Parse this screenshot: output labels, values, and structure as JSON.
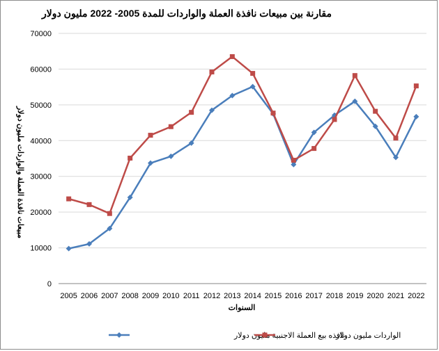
{
  "chart_data": {
    "type": "line",
    "title": "مقارنة بين مبيعات نافذة العملة والواردات للمدة 2005- 2022 مليون دولار",
    "xlabel": "السنوات",
    "ylabel": "مبيعات نافذة العملة والواردات مليون دولار",
    "categories": [
      "2005",
      "2006",
      "2007",
      "2008",
      "2009",
      "2010",
      "2011",
      "2012",
      "2013",
      "2014",
      "2015",
      "2016",
      "2017",
      "2018",
      "2019",
      "2020",
      "2021",
      "2022"
    ],
    "ylim": [
      0,
      70000
    ],
    "yticks": [
      "0",
      "10000",
      "20000",
      "30000",
      "40000",
      "50000",
      "60000",
      "70000"
    ],
    "grid": true,
    "legend_position": "bottom",
    "series": [
      {
        "name": "نافذه بيع العملة الاجنبية مليون دولار",
        "color": "#4a7ebb",
        "marker": "diamond",
        "values": [
          9800,
          11100,
          15400,
          24100,
          33700,
          35600,
          39300,
          48500,
          52600,
          55100,
          47500,
          33300,
          42300,
          47100,
          51000,
          44000,
          35300,
          46700
        ]
      },
      {
        "name": "الواردات مليون دولار",
        "color": "#be4b48",
        "marker": "square",
        "values": [
          23700,
          22100,
          19600,
          35100,
          41500,
          43900,
          47900,
          59200,
          63500,
          58800,
          47700,
          34500,
          37800,
          45900,
          58200,
          48200,
          40700,
          55300
        ]
      }
    ]
  }
}
